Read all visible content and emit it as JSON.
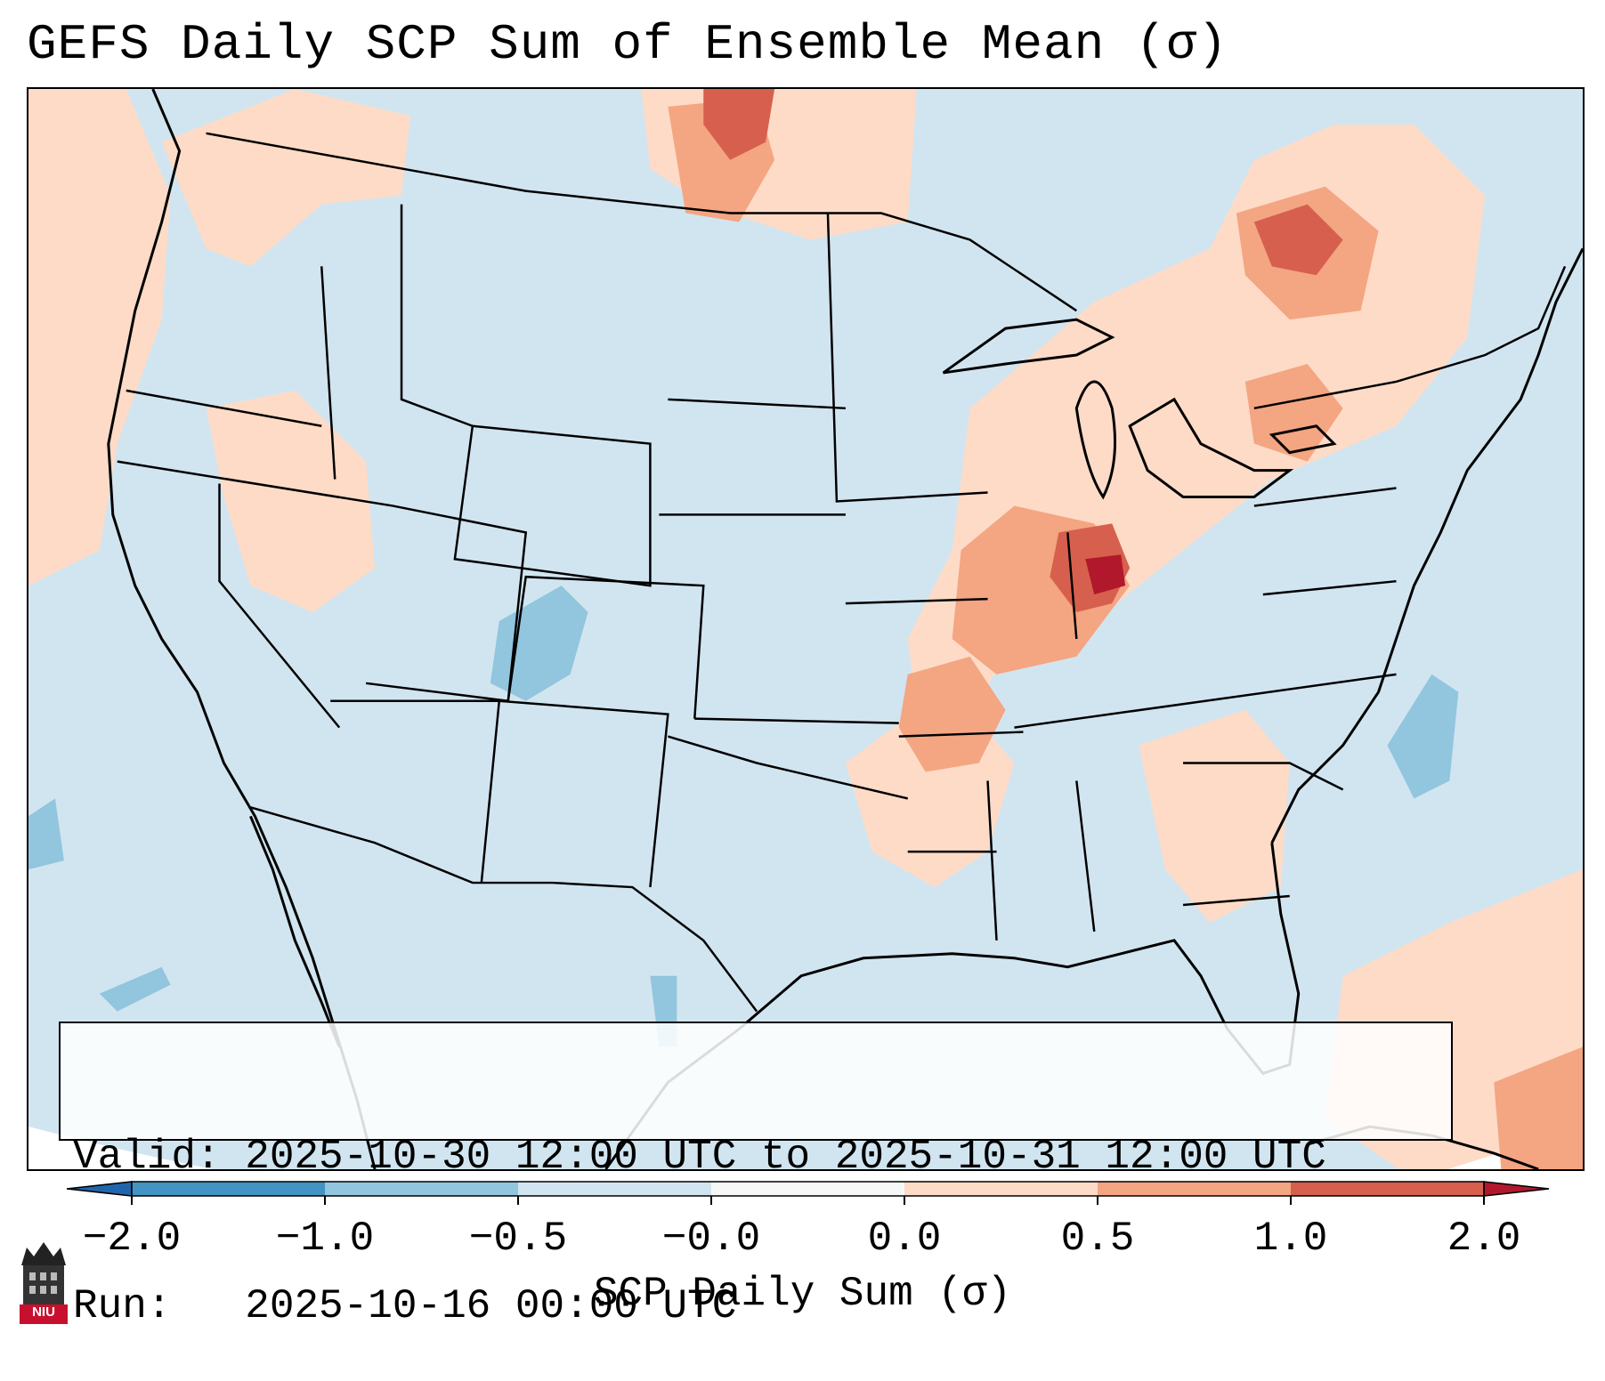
{
  "title": "GEFS Daily SCP Sum of Ensemble Mean (σ)",
  "info": {
    "valid_line": "Valid: 2025-10-30 12:00 UTC to 2025-10-31 12:00 UTC",
    "run_line": "Run:   2025-10-16 00:00 UTC"
  },
  "colorbar": {
    "label": "SCP Daily Sum (σ)",
    "ticks": [
      "−2.0",
      "−1.0",
      "−0.5",
      "−0.0",
      "0.0",
      "0.5",
      "1.0",
      "2.0"
    ],
    "bins": [
      {
        "range": "< -2.0",
        "color": "#2166ac"
      },
      {
        "range": "-2.0 to -1.0",
        "color": "#4393c3"
      },
      {
        "range": "-1.0 to -0.5",
        "color": "#92c5de"
      },
      {
        "range": "-0.5 to 0.0",
        "color": "#d1e5f0"
      },
      {
        "range": "0.0",
        "color": "#f7f7f7"
      },
      {
        "range": "0.0 to 0.5",
        "color": "#fddbc7"
      },
      {
        "range": "0.5 to 1.0",
        "color": "#f4a582"
      },
      {
        "range": "1.0 to 2.0",
        "color": "#d6604d"
      },
      {
        "range": "> 2.0",
        "color": "#b2182b"
      }
    ]
  },
  "logo": {
    "text": "NIU",
    "icon": "university-tower-icon",
    "color": "#c8102e"
  },
  "map": {
    "projection": "Lambert Conformal (CONUS)",
    "background_color": "#d1e5f0",
    "boundaries": [
      "coastlines",
      "country borders",
      "state borders"
    ]
  }
}
